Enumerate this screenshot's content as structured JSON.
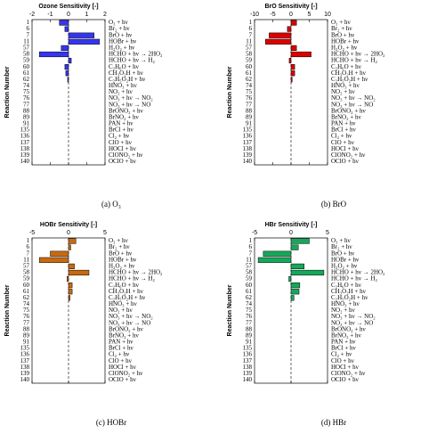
{
  "chart_data": [
    {
      "type": "barh",
      "title": "Ozone Sensitivity [-]",
      "ylabel": "Reaction Number",
      "caption": "(a) O₃",
      "color": "#3535f0",
      "categories": [
        "1",
        "6",
        "7",
        "11",
        "57",
        "58",
        "59",
        "60",
        "61",
        "62",
        "74",
        "75",
        "76",
        "77",
        "88",
        "89",
        "91",
        "135",
        "136",
        "137",
        "138",
        "139",
        "140"
      ],
      "reactions": [
        "O₃ + hν",
        "Br₂ + hν",
        "BrO + hν",
        "HOBr + hν",
        "H₂O₂ + hν",
        "HCHO + hν → 2HO₂",
        "HCHO + hν → H₂",
        "C₂H₆O + hν",
        "CH₃O₂H + hν",
        "C₂H₅O₂H + hν",
        "HNO₃ + hν",
        "NO₂ + hν",
        "NO₃ + hν → NO₂",
        "NO₃ + hν → NO",
        "BrONO₂ + hν",
        "BrNO₂ + hν",
        "PAN + hν",
        "BrCl + hν",
        "Cl₂ + hν",
        "ClO + hν",
        "HOCl + hν",
        "ClONO₂ + hν",
        "OClO + hν"
      ],
      "values": [
        -0.5,
        -0.2,
        1.4,
        1.7,
        -0.4,
        -1.6,
        0.15,
        -0.2,
        -0.15,
        -0.05,
        0,
        0,
        0,
        0,
        0,
        0,
        0,
        0,
        0,
        0,
        0,
        0,
        0
      ],
      "xlim": [
        -2,
        2
      ],
      "xticks": [
        -2,
        -1,
        0,
        1,
        2
      ]
    },
    {
      "type": "barh",
      "title": "BrO Sensitivity [-]",
      "ylabel": "Reaction Number",
      "caption": "(b) BrO",
      "color": "#dd0000",
      "categories": [
        "1",
        "6",
        "7",
        "11",
        "57",
        "58",
        "59",
        "60",
        "61",
        "62",
        "74",
        "75",
        "76",
        "77",
        "88",
        "89",
        "91",
        "135",
        "136",
        "137",
        "138",
        "139",
        "140"
      ],
      "reactions": [
        "O₃ + hν",
        "Br₂ + hν",
        "BrO + hν",
        "HOBr + hν",
        "H₂O₂ + hν",
        "HCHO + hν → 2HO₂",
        "HCHO + hν → H₂",
        "C₂H₆O + hν",
        "CH₃O₂H + hν",
        "C₂H₅O₂H + hν",
        "HNO₃ + hν",
        "NO₂ + hν",
        "NO₃ + hν → NO₂",
        "NO₃ + hν → NO",
        "BrONO₂ + hν",
        "BrNO₂ + hν",
        "PAN + hν",
        "BrCl + hν",
        "Cl₂ + hν",
        "ClO + hν",
        "HOCl + hν",
        "ClONO₂ + hν",
        "OClO + hν"
      ],
      "values": [
        1.5,
        -1,
        -6,
        -7,
        1.5,
        5.5,
        -0.5,
        1,
        1,
        0.3,
        0,
        0,
        0,
        0,
        0,
        0,
        0,
        0,
        0,
        0,
        0,
        0,
        0
      ],
      "xlim": [
        -10,
        10
      ],
      "xticks": [
        -10,
        -5,
        0,
        5,
        10
      ]
    },
    {
      "type": "barh",
      "title": "HOBr Sensitivity [-]",
      "ylabel": "Reaction Number",
      "caption": "(c) HOBr",
      "color": "#c86a10",
      "categories": [
        "1",
        "6",
        "7",
        "11",
        "57",
        "58",
        "59",
        "60",
        "61",
        "62",
        "74",
        "75",
        "76",
        "77",
        "88",
        "89",
        "91",
        "135",
        "136",
        "137",
        "138",
        "139",
        "140"
      ],
      "reactions": [
        "O₃ + hν",
        "Br₂ + hν",
        "BrO + hν",
        "HOBr + hν",
        "H₂O₂ + hν",
        "HCHO + hν → 2HO₂",
        "HCHO + hν → H₂",
        "C₂H₆O + hν",
        "CH₃O₂H + hν",
        "C₂H₅O₂H + hν",
        "HNO₃ + hν",
        "NO₂ + hν",
        "NO₃ + hν → NO₂",
        "NO₃ + hν → NO",
        "BrONO₂ + hν",
        "BrNO₂ + hν",
        "PAN + hν",
        "BrCl + hν",
        "Cl₂ + hν",
        "ClO + hν",
        "HOCl + hν",
        "ClONO₂ + hν",
        "OClO + hν"
      ],
      "values": [
        1,
        0.3,
        -2.5,
        -4,
        0.8,
        2.8,
        -0.2,
        0.5,
        0.5,
        0.2,
        0,
        0,
        0,
        0,
        0,
        0,
        0,
        0,
        0,
        0,
        0,
        0,
        0
      ],
      "xlim": [
        -5,
        5
      ],
      "xticks": [
        -5,
        0,
        5
      ]
    },
    {
      "type": "barh",
      "title": "HBr Sensitivity [-]",
      "ylabel": "Reaction Number",
      "caption": "(d) HBr",
      "color": "#15a85a",
      "categories": [
        "1",
        "6",
        "7",
        "11",
        "57",
        "58",
        "59",
        "60",
        "61",
        "62",
        "74",
        "75",
        "76",
        "77",
        "88",
        "89",
        "91",
        "135",
        "136",
        "137",
        "138",
        "139",
        "140"
      ],
      "reactions": [
        "O₃ + hν",
        "Br₂ + hν",
        "BrO + hν",
        "HOBr + hν",
        "H₂O₂ + hν",
        "HCHO + hν → 2HO₂",
        "HCHO + hν → H₂",
        "C₂H₆O + hν",
        "CH₃O₂H + hν",
        "C₂H₅O₂H + hν",
        "HNO₃ + hν",
        "NO₂ + hν",
        "NO₃ + hν → NO₂",
        "NO₃ + hν → NO",
        "BrONO₂ + hν",
        "BrNO₂ + hν",
        "PAN + hν",
        "BrCl + hν",
        "Cl₂ + hν",
        "ClO + hν",
        "HOCl + hν",
        "ClONO₂ + hν",
        "OClO + hν"
      ],
      "values": [
        2.5,
        1,
        -3.8,
        -4.5,
        1.8,
        4.5,
        -0.3,
        1.2,
        1.1,
        0.4,
        0,
        0,
        0,
        0,
        0,
        0,
        0,
        0,
        0,
        0,
        0,
        0,
        0
      ],
      "xlim": [
        -5,
        5
      ],
      "xticks": [
        -5,
        0,
        5
      ]
    }
  ]
}
